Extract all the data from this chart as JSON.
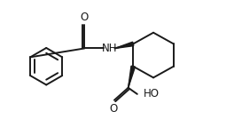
{
  "bg_color": "#ffffff",
  "line_color": "#1a1a1a",
  "line_width": 1.4,
  "wedge_color": "#1a1a1a",
  "text_color": "#1a1a1a",
  "label_O1": "O",
  "label_O2": "O",
  "label_NH": "NH",
  "label_HO": "HO",
  "figsize": [
    2.64,
    1.52
  ],
  "dpi": 100
}
